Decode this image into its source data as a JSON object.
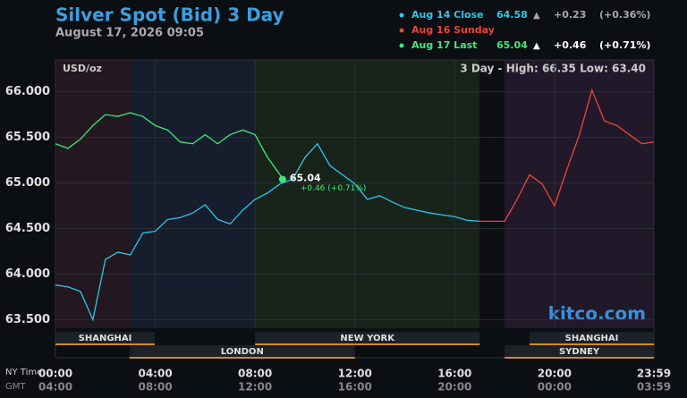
{
  "chart_data": {
    "type": "line",
    "title": "Silver Spot (Bid) 3 Day",
    "subtitle": "August 17, 2026 09:05",
    "unit_label": "USD/oz",
    "range_label": "3 Day - High: 66.35  Low: 63.40",
    "watermark": "kitco.com",
    "x_row_labels": [
      "NY Time",
      "GMT"
    ],
    "xlim": [
      0,
      23.983
    ],
    "ylim": [
      63.18,
      66.35
    ],
    "yticks": [
      {
        "value": 63.5,
        "label": "63.500"
      },
      {
        "value": 64,
        "label": "64.000"
      },
      {
        "value": 64.5,
        "label": "64.500"
      },
      {
        "value": 65,
        "label": "65.000"
      },
      {
        "value": 65.5,
        "label": "65.500"
      },
      {
        "value": 66,
        "label": "66.000"
      }
    ],
    "xticks": [
      {
        "value": 0,
        "label": "00:00"
      },
      {
        "value": 4,
        "label": "04:00"
      },
      {
        "value": 8,
        "label": "08:00"
      },
      {
        "value": 12,
        "label": "12:00"
      },
      {
        "value": 16,
        "label": "16:00"
      },
      {
        "value": 20,
        "label": "20:00"
      },
      {
        "value": 23.983,
        "label": "23:59"
      }
    ],
    "xticks_gmt": [
      {
        "value": 0,
        "label": "04:00"
      },
      {
        "value": 4,
        "label": "08:00"
      },
      {
        "value": 8,
        "label": "12:00"
      },
      {
        "value": 12,
        "label": "16:00"
      },
      {
        "value": 16,
        "label": "20:00"
      },
      {
        "value": 20,
        "label": "00:00"
      },
      {
        "value": 23.983,
        "label": "03:59"
      }
    ],
    "grid": true,
    "sessions_upper": [
      {
        "name": "SHANGHAI",
        "start": 0,
        "end": 3.98
      },
      {
        "name": "NEW YORK",
        "start": 8,
        "end": 17
      },
      {
        "name": "SHANGHAI",
        "start": 19,
        "end": 23.983
      }
    ],
    "sessions_lower": [
      {
        "name": "LONDON",
        "start": 2.97,
        "end": 12
      },
      {
        "name": "SYDNEY",
        "start": 18,
        "end": 23.983
      }
    ],
    "series": [
      {
        "name": "Aug 14 Close",
        "color": "#2fc6e8",
        "last": "64.58",
        "arrow": "▲",
        "change": "+0.23",
        "change_pct": "(+0.36%)",
        "x": [
          0,
          0.5,
          1,
          1.5,
          2,
          2.5,
          3,
          3.5,
          4,
          4.5,
          5,
          5.5,
          6,
          6.5,
          7,
          7.5,
          8,
          8.5,
          9,
          9.5,
          10,
          10.5,
          11,
          11.5,
          12,
          12.5,
          13,
          13.5,
          14,
          14.5,
          15,
          15.5,
          16,
          16.5,
          17
        ],
        "values": [
          63.88,
          63.86,
          63.81,
          63.5,
          64.16,
          64.24,
          64.21,
          64.45,
          64.47,
          64.6,
          64.62,
          64.67,
          64.76,
          64.6,
          64.55,
          64.7,
          64.82,
          64.89,
          64.99,
          65.04,
          65.28,
          65.43,
          65.19,
          65.09,
          64.99,
          64.82,
          64.86,
          64.79,
          64.73,
          64.7,
          64.67,
          64.65,
          64.63,
          64.59,
          64.58
        ]
      },
      {
        "name": "Aug 16 Sunday",
        "color": "#e8453a",
        "x": [
          17,
          18,
          18.5,
          19,
          19.5,
          20,
          20.5,
          21,
          21.5,
          22,
          22.5,
          23,
          23.5,
          23.983
        ],
        "values": [
          64.58,
          64.58,
          64.82,
          65.09,
          64.99,
          64.75,
          65.15,
          65.53,
          66.02,
          65.68,
          65.63,
          65.53,
          65.43,
          65.45
        ]
      },
      {
        "name": "Aug 17 Last",
        "color": "#3ee87a",
        "last": "65.04",
        "arrow": "▲",
        "change": "+0.46",
        "change_pct": "(+0.71%)",
        "x": [
          0,
          0.5,
          1,
          1.5,
          2,
          2.5,
          3,
          3.5,
          4,
          4.5,
          5,
          5.5,
          6,
          6.5,
          7,
          7.5,
          8,
          8.5,
          9,
          9.1
        ],
        "values": [
          65.43,
          65.38,
          65.48,
          65.63,
          65.75,
          65.73,
          65.77,
          65.73,
          65.63,
          65.58,
          65.45,
          65.43,
          65.53,
          65.43,
          65.53,
          65.58,
          65.53,
          65.28,
          65.09,
          65.04
        ]
      }
    ],
    "annotations": [
      "65.04",
      "+0.46 (+0.71%)"
    ]
  }
}
